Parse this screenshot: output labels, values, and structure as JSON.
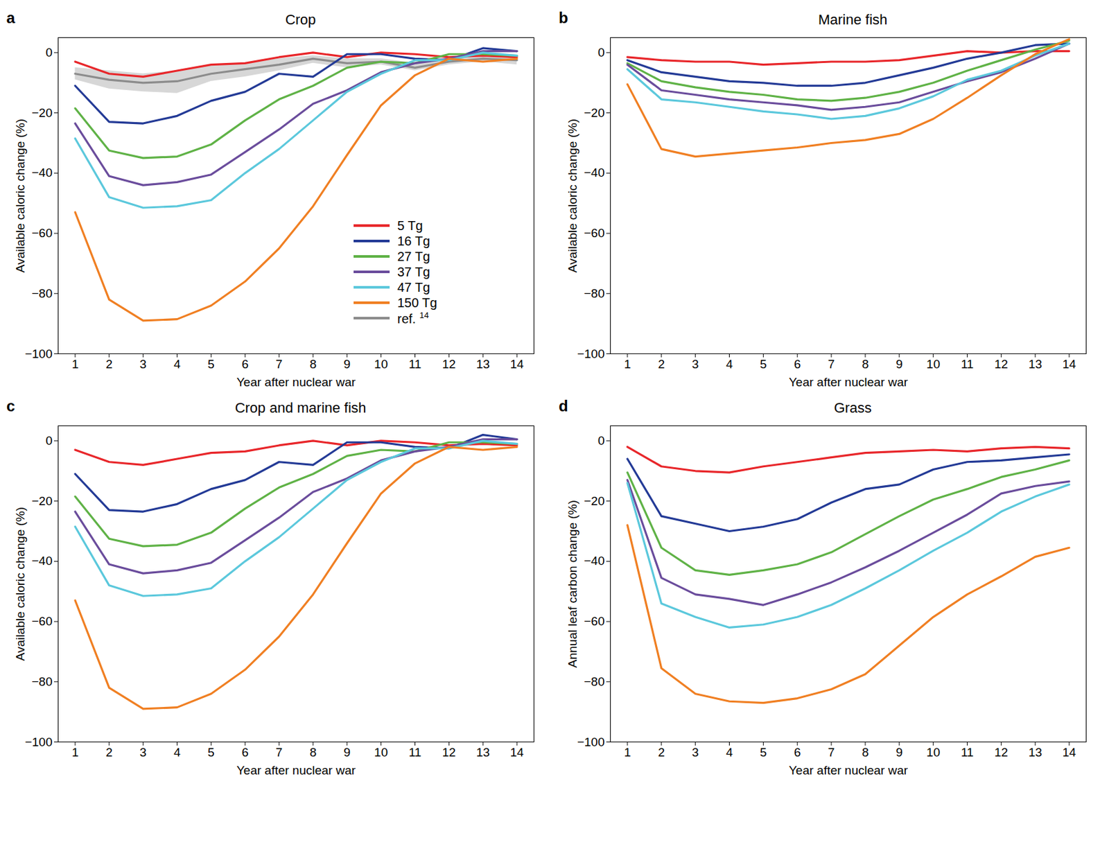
{
  "chart_data": [
    {
      "type": "line",
      "panel_label": "a",
      "title": "Crop",
      "x_label": "Year after nuclear war",
      "y_label": "Available caloric change (%)",
      "x": [
        1,
        2,
        3,
        4,
        5,
        6,
        7,
        8,
        9,
        10,
        11,
        12,
        13,
        14
      ],
      "xlim": [
        0.5,
        14.5
      ],
      "xticks": [
        1,
        2,
        3,
        4,
        5,
        6,
        7,
        8,
        9,
        10,
        11,
        12,
        13,
        14
      ],
      "ylim": [
        -100,
        5
      ],
      "yticks": [
        0,
        -20,
        -40,
        -60,
        -80,
        -100
      ],
      "legend": "lower right",
      "series": [
        {
          "name": "ref. 14",
          "color": "#8c8c8c",
          "values": [
            -7,
            -9,
            -10,
            -9.5,
            -7,
            -5.5,
            -4,
            -2,
            -3.5,
            -3,
            -5,
            -3,
            -2,
            -2.5
          ],
          "band": {
            "lower": [
              -9,
              -12,
              -13,
              -13.5,
              -9.5,
              -8,
              -6,
              -3.5,
              -5,
              -4,
              -6,
              -4,
              -3,
              -4
            ],
            "upper": [
              -5,
              -6,
              -7,
              -6,
              -4,
              -3.5,
              -2,
              -1,
              -2,
              -2,
              -3.5,
              -2,
              -1,
              -1
            ]
          }
        },
        {
          "name": "5 Tg",
          "color": "#e8262a",
          "values": [
            -3,
            -7,
            -8,
            -6,
            -4,
            -3.5,
            -1.5,
            0,
            -1.5,
            0,
            -0.5,
            -1.5,
            -1,
            -1.5
          ]
        },
        {
          "name": "16 Tg",
          "color": "#233a96",
          "values": [
            -11,
            -23,
            -23.5,
            -21,
            -16,
            -13,
            -7,
            -8,
            -0.5,
            -0.5,
            -2,
            -2.5,
            1.5,
            0.5
          ]
        },
        {
          "name": "27 Tg",
          "color": "#5fb246",
          "values": [
            -18.5,
            -32.5,
            -35,
            -34.5,
            -30.5,
            -22.5,
            -15.5,
            -11,
            -5,
            -3,
            -3.5,
            -0.5,
            -0.5,
            -1
          ]
        },
        {
          "name": "37 Tg",
          "color": "#6a4c9c",
          "values": [
            -23.5,
            -41,
            -44,
            -43,
            -40.5,
            -33,
            -25.5,
            -17,
            -12.5,
            -6.5,
            -3.5,
            -2,
            0.5,
            0.5
          ]
        },
        {
          "name": "47 Tg",
          "color": "#5bc8dc",
          "values": [
            -28.5,
            -48,
            -51.5,
            -51,
            -49,
            -40,
            -32,
            -22.5,
            -13,
            -7,
            -2.5,
            -2.5,
            0,
            -1
          ]
        },
        {
          "name": "150 Tg",
          "color": "#f07f22",
          "values": [
            -53,
            -82,
            -89,
            -88.5,
            -84,
            -76,
            -65,
            -51,
            -34,
            -17.5,
            -7.5,
            -2,
            -3,
            -2
          ]
        }
      ]
    },
    {
      "type": "line",
      "panel_label": "b",
      "title": "Marine fish",
      "x_label": "Year after nuclear war",
      "y_label": "Available caloric change (%)",
      "x": [
        1,
        2,
        3,
        4,
        5,
        6,
        7,
        8,
        9,
        10,
        11,
        12,
        13,
        14
      ],
      "xlim": [
        0.5,
        14.5
      ],
      "xticks": [
        1,
        2,
        3,
        4,
        5,
        6,
        7,
        8,
        9,
        10,
        11,
        12,
        13,
        14
      ],
      "ylim": [
        -100,
        5
      ],
      "yticks": [
        0,
        -20,
        -40,
        -60,
        -80,
        -100
      ],
      "series": [
        {
          "name": "5 Tg",
          "color": "#e8262a",
          "values": [
            -1.5,
            -2.5,
            -3,
            -3,
            -4,
            -3.5,
            -3,
            -3,
            -2.5,
            -1,
            0.5,
            0,
            0.5,
            0.5
          ]
        },
        {
          "name": "16 Tg",
          "color": "#233a96",
          "values": [
            -2.5,
            -6.5,
            -8,
            -9.5,
            -10,
            -11,
            -11,
            -10,
            -7.5,
            -5,
            -2,
            0,
            2.5,
            3
          ]
        },
        {
          "name": "27 Tg",
          "color": "#5fb246",
          "values": [
            -3.5,
            -9.5,
            -11.5,
            -13,
            -14,
            -15.5,
            -16,
            -15,
            -13,
            -10,
            -6,
            -2.5,
            1,
            4
          ]
        },
        {
          "name": "37 Tg",
          "color": "#6a4c9c",
          "values": [
            -4,
            -12.5,
            -14,
            -15.5,
            -16.5,
            -17.5,
            -19,
            -18,
            -16.5,
            -13,
            -9.5,
            -6.5,
            -2,
            3
          ]
        },
        {
          "name": "47 Tg",
          "color": "#5bc8dc",
          "values": [
            -5.5,
            -15.5,
            -16.5,
            -18,
            -19.5,
            -20.5,
            -22,
            -21,
            -18.5,
            -14.5,
            -9,
            -6,
            -1,
            3
          ]
        },
        {
          "name": "150 Tg",
          "color": "#f07f22",
          "values": [
            -10.5,
            -32,
            -34.5,
            -33.5,
            -32.5,
            -31.5,
            -30,
            -29,
            -27,
            -22,
            -15,
            -7.5,
            -0.5,
            4.5
          ]
        }
      ]
    },
    {
      "type": "line",
      "panel_label": "c",
      "title": "Crop and marine fish",
      "x_label": "Year after nuclear war",
      "y_label": "Available caloric change (%)",
      "x": [
        1,
        2,
        3,
        4,
        5,
        6,
        7,
        8,
        9,
        10,
        11,
        12,
        13,
        14
      ],
      "xlim": [
        0.5,
        14.5
      ],
      "xticks": [
        1,
        2,
        3,
        4,
        5,
        6,
        7,
        8,
        9,
        10,
        11,
        12,
        13,
        14
      ],
      "ylim": [
        -100,
        5
      ],
      "yticks": [
        0,
        -20,
        -40,
        -60,
        -80,
        -100
      ],
      "series": [
        {
          "name": "5 Tg",
          "color": "#e8262a",
          "values": [
            -3,
            -7,
            -8,
            -6,
            -4,
            -3.5,
            -1.5,
            0,
            -1.5,
            0,
            -0.5,
            -1.5,
            -1,
            -1.5
          ]
        },
        {
          "name": "16 Tg",
          "color": "#233a96",
          "values": [
            -11,
            -23,
            -23.5,
            -21,
            -16,
            -13,
            -7,
            -8,
            -0.5,
            -0.5,
            -2,
            -2.5,
            2,
            0.5
          ]
        },
        {
          "name": "27 Tg",
          "color": "#5fb246",
          "values": [
            -18.5,
            -32.5,
            -35,
            -34.5,
            -30.5,
            -22.5,
            -15.5,
            -11,
            -5,
            -3,
            -3.5,
            -0.5,
            -0.5,
            -1
          ]
        },
        {
          "name": "37 Tg",
          "color": "#6a4c9c",
          "values": [
            -23.5,
            -41,
            -44,
            -43,
            -40.5,
            -33,
            -25.5,
            -17,
            -12.5,
            -6.5,
            -3.5,
            -2,
            0.5,
            0.5
          ]
        },
        {
          "name": "47 Tg",
          "color": "#5bc8dc",
          "values": [
            -28.5,
            -48,
            -51.5,
            -51,
            -49,
            -40,
            -32,
            -22.5,
            -13,
            -7,
            -2.5,
            -2.5,
            0,
            -1
          ]
        },
        {
          "name": "150 Tg",
          "color": "#f07f22",
          "values": [
            -53,
            -82,
            -89,
            -88.5,
            -84,
            -76,
            -65,
            -51,
            -34,
            -17.5,
            -7.5,
            -2,
            -3,
            -2
          ]
        }
      ]
    },
    {
      "type": "line",
      "panel_label": "d",
      "title": "Grass",
      "x_label": "Year after nuclear war",
      "y_label": "Annual leaf carbon change (%)",
      "x": [
        1,
        2,
        3,
        4,
        5,
        6,
        7,
        8,
        9,
        10,
        11,
        12,
        13,
        14
      ],
      "xlim": [
        0.5,
        14.5
      ],
      "xticks": [
        1,
        2,
        3,
        4,
        5,
        6,
        7,
        8,
        9,
        10,
        11,
        12,
        13,
        14
      ],
      "ylim": [
        -100,
        5
      ],
      "yticks": [
        0,
        -20,
        -40,
        -60,
        -80,
        -100
      ],
      "series": [
        {
          "name": "5 Tg",
          "color": "#e8262a",
          "values": [
            -2,
            -8.5,
            -10,
            -10.5,
            -8.5,
            -7,
            -5.5,
            -4,
            -3.5,
            -3,
            -3.5,
            -2.5,
            -2,
            -2.5
          ]
        },
        {
          "name": "16 Tg",
          "color": "#233a96",
          "values": [
            -6,
            -25,
            -27.5,
            -30,
            -28.5,
            -26,
            -20.5,
            -16,
            -14.5,
            -9.5,
            -7,
            -6.5,
            -5.5,
            -4.5
          ]
        },
        {
          "name": "27 Tg",
          "color": "#5fb246",
          "values": [
            -10.5,
            -35.5,
            -43,
            -44.5,
            -43,
            -41,
            -37,
            -31,
            -25,
            -19.5,
            -16,
            -12,
            -9.5,
            -6.5
          ]
        },
        {
          "name": "37 Tg",
          "color": "#6a4c9c",
          "values": [
            -13,
            -45.5,
            -51,
            -52.5,
            -54.5,
            -51,
            -47,
            -42,
            -36.5,
            -30.5,
            -24.5,
            -17.5,
            -15,
            -13.5
          ]
        },
        {
          "name": "47 Tg",
          "color": "#5bc8dc",
          "values": [
            -14,
            -54,
            -58.5,
            -62,
            -61,
            -58.5,
            -54.5,
            -49,
            -43,
            -36.5,
            -30.5,
            -23.5,
            -18.5,
            -14.5
          ]
        },
        {
          "name": "150 Tg",
          "color": "#f07f22",
          "values": [
            -28,
            -75.5,
            -84,
            -86.5,
            -87,
            -85.5,
            -82.5,
            -77.5,
            -68,
            -58.5,
            -51,
            -45,
            -38.5,
            -35.5
          ]
        }
      ]
    }
  ]
}
